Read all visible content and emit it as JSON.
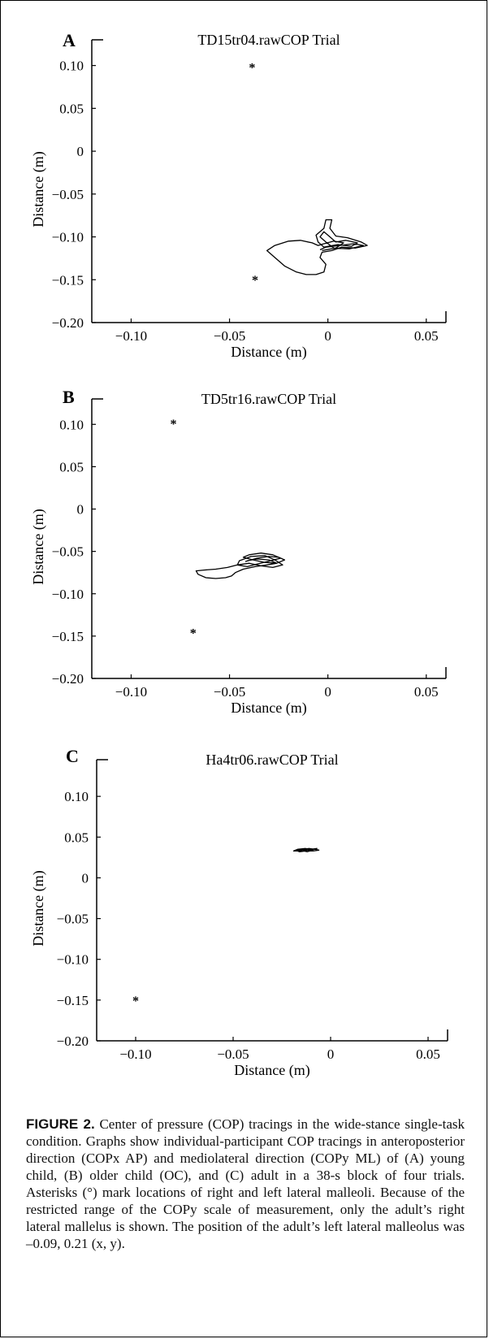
{
  "chart_data": [
    {
      "type": "scatter",
      "panel_label": "A",
      "title": "TD15tr04.rawCOP Trial",
      "xlabel": "Distance (m)",
      "ylabel": "Distance (m)",
      "xlim": [
        -0.12,
        0.06
      ],
      "ylim": [
        -0.2,
        0.13
      ],
      "xticks": [
        -0.1,
        -0.05,
        0,
        0.05
      ],
      "xtick_labels": [
        "−0.10",
        "−0.05",
        "0",
        "0.05"
      ],
      "yticks": [
        0.1,
        0.05,
        0,
        -0.05,
        -0.1,
        -0.15,
        -0.2
      ],
      "ytick_labels": [
        "0.10",
        "0.05",
        "0",
        "−0.05",
        "−0.10",
        "−0.15",
        "−0.20"
      ],
      "markers": [
        {
          "x": -0.0385,
          "y": 0.1
        },
        {
          "x": -0.037,
          "y": -0.148
        }
      ],
      "marker_symbol": "*",
      "trace": [
        [
          -0.004,
          -0.115
        ],
        [
          -0.001,
          -0.112
        ],
        [
          0.006,
          -0.11
        ],
        [
          0.013,
          -0.108
        ],
        [
          0.018,
          -0.11
        ],
        [
          0.011,
          -0.114
        ],
        [
          0.003,
          -0.113
        ],
        [
          -0.001,
          -0.106
        ],
        [
          -0.004,
          -0.1
        ],
        [
          -0.002,
          -0.094
        ],
        [
          0.001,
          -0.1
        ],
        [
          0.004,
          -0.106
        ],
        [
          0.009,
          -0.104
        ],
        [
          0.015,
          -0.107
        ],
        [
          0.012,
          -0.111
        ],
        [
          0.005,
          -0.109
        ],
        [
          -0.002,
          -0.112
        ],
        [
          -0.005,
          -0.106
        ],
        [
          -0.006,
          -0.098
        ],
        [
          -0.002,
          -0.09
        ],
        [
          -0.001,
          -0.08
        ],
        [
          0.002,
          -0.08
        ],
        [
          0.001,
          -0.09
        ],
        [
          0.004,
          -0.099
        ],
        [
          0.01,
          -0.101
        ],
        [
          0.017,
          -0.106
        ],
        [
          0.02,
          -0.11
        ],
        [
          0.014,
          -0.113
        ],
        [
          0.007,
          -0.112
        ],
        [
          0.002,
          -0.116
        ],
        [
          -0.003,
          -0.118
        ],
        [
          -0.004,
          -0.124
        ],
        [
          -0.001,
          -0.132
        ],
        [
          -0.002,
          -0.141
        ],
        [
          -0.006,
          -0.144
        ],
        [
          -0.011,
          -0.144
        ],
        [
          -0.016,
          -0.141
        ],
        [
          -0.022,
          -0.134
        ],
        [
          -0.027,
          -0.124
        ],
        [
          -0.031,
          -0.116
        ],
        [
          -0.027,
          -0.11
        ],
        [
          -0.02,
          -0.105
        ],
        [
          -0.014,
          -0.104
        ],
        [
          -0.008,
          -0.107
        ],
        [
          -0.005,
          -0.11
        ],
        [
          -0.002,
          -0.108
        ],
        [
          0.003,
          -0.105
        ],
        [
          0.008,
          -0.107
        ],
        [
          0.004,
          -0.113
        ],
        [
          -0.003,
          -0.116
        ]
      ]
    },
    {
      "type": "scatter",
      "panel_label": "B",
      "title": "TD5tr16.rawCOP Trial",
      "xlabel": "Distance (m)",
      "ylabel": "Distance (m)",
      "xlim": [
        -0.12,
        0.06
      ],
      "ylim": [
        -0.2,
        0.13
      ],
      "xticks": [
        -0.1,
        -0.05,
        0,
        0.05
      ],
      "xtick_labels": [
        "−0.10",
        "−0.05",
        "0",
        "0.05"
      ],
      "yticks": [
        0.1,
        0.05,
        0,
        -0.05,
        -0.1,
        -0.15,
        -0.2
      ],
      "ytick_labels": [
        "0.10",
        "0.05",
        "0",
        "−0.05",
        "−0.10",
        "−0.15",
        "−0.20"
      ],
      "markers": [
        {
          "x": -0.0785,
          "y": 0.103
        },
        {
          "x": -0.0685,
          "y": -0.144
        }
      ],
      "marker_symbol": "*",
      "trace": [
        [
          -0.042,
          -0.062
        ],
        [
          -0.036,
          -0.058
        ],
        [
          -0.03,
          -0.056
        ],
        [
          -0.025,
          -0.057
        ],
        [
          -0.022,
          -0.06
        ],
        [
          -0.026,
          -0.064
        ],
        [
          -0.032,
          -0.063
        ],
        [
          -0.038,
          -0.06
        ],
        [
          -0.043,
          -0.057
        ],
        [
          -0.04,
          -0.054
        ],
        [
          -0.034,
          -0.052
        ],
        [
          -0.028,
          -0.054
        ],
        [
          -0.024,
          -0.058
        ],
        [
          -0.029,
          -0.061
        ],
        [
          -0.036,
          -0.065
        ],
        [
          -0.041,
          -0.068
        ],
        [
          -0.046,
          -0.066
        ],
        [
          -0.045,
          -0.061
        ],
        [
          -0.039,
          -0.056
        ],
        [
          -0.032,
          -0.055
        ],
        [
          -0.027,
          -0.06
        ],
        [
          -0.023,
          -0.066
        ],
        [
          -0.028,
          -0.069
        ],
        [
          -0.034,
          -0.067
        ],
        [
          -0.04,
          -0.064
        ],
        [
          -0.046,
          -0.066
        ],
        [
          -0.051,
          -0.069
        ],
        [
          -0.057,
          -0.071
        ],
        [
          -0.063,
          -0.072
        ],
        [
          -0.067,
          -0.073
        ],
        [
          -0.066,
          -0.077
        ],
        [
          -0.062,
          -0.081
        ],
        [
          -0.057,
          -0.082
        ],
        [
          -0.052,
          -0.081
        ],
        [
          -0.049,
          -0.079
        ],
        [
          -0.047,
          -0.075
        ],
        [
          -0.043,
          -0.071
        ],
        [
          -0.037,
          -0.068
        ],
        [
          -0.031,
          -0.066
        ],
        [
          -0.026,
          -0.064
        ],
        [
          -0.03,
          -0.06
        ],
        [
          -0.036,
          -0.059
        ],
        [
          -0.041,
          -0.061
        ]
      ]
    },
    {
      "type": "scatter",
      "panel_label": "C",
      "title": "Ha4tr06.rawCOP Trial",
      "xlabel": "Distance (m)",
      "ylabel": "Distance (m)",
      "xlim": [
        -0.12,
        0.06
      ],
      "ylim": [
        -0.2,
        0.145
      ],
      "xticks": [
        -0.1,
        -0.05,
        0,
        0.05
      ],
      "xtick_labels": [
        "−0.10",
        "−0.05",
        "0",
        "0.05"
      ],
      "yticks": [
        0.1,
        0.05,
        0,
        -0.05,
        -0.1,
        -0.15,
        -0.2
      ],
      "ytick_labels": [
        "0.10",
        "0.05",
        "0",
        "−0.05",
        "−0.10",
        "−0.15",
        "−0.20"
      ],
      "markers": [
        {
          "x": -0.1,
          "y": -0.148
        }
      ],
      "marker_symbol": "*",
      "trace": [
        [
          -0.017,
          0.033
        ],
        [
          -0.014,
          0.035
        ],
        [
          -0.011,
          0.036
        ],
        [
          -0.008,
          0.035
        ],
        [
          -0.006,
          0.034
        ],
        [
          -0.009,
          0.033
        ],
        [
          -0.012,
          0.034
        ],
        [
          -0.015,
          0.035
        ],
        [
          -0.018,
          0.034
        ],
        [
          -0.016,
          0.032
        ],
        [
          -0.013,
          0.033
        ],
        [
          -0.01,
          0.035
        ],
        [
          -0.007,
          0.036
        ],
        [
          -0.011,
          0.034
        ],
        [
          -0.015,
          0.033
        ],
        [
          -0.019,
          0.033
        ],
        [
          -0.017,
          0.035
        ],
        [
          -0.013,
          0.036
        ],
        [
          -0.009,
          0.034
        ],
        [
          -0.012,
          0.032
        ],
        [
          -0.016,
          0.034
        ]
      ]
    }
  ],
  "caption": {
    "label": "FIGURE 2.",
    "text": "Center of pressure (COP) tracings in the wide-stance single-task condition. Graphs show individual-participant COP tracings in anteroposterior direction (COPx AP) and mediolateral direction (COPy ML) of (A) young child, (B) older child (OC), and (C) adult in a 38-s block of four trials. Asterisks (°) mark locations of right and left lateral malleoli. Because of the restricted range of the COPy scale of measurement, only the adult’s right lateral mallelus is shown. The position of the adult’s left lateral malleolus was –0.09, 0.21 (x, y)."
  }
}
